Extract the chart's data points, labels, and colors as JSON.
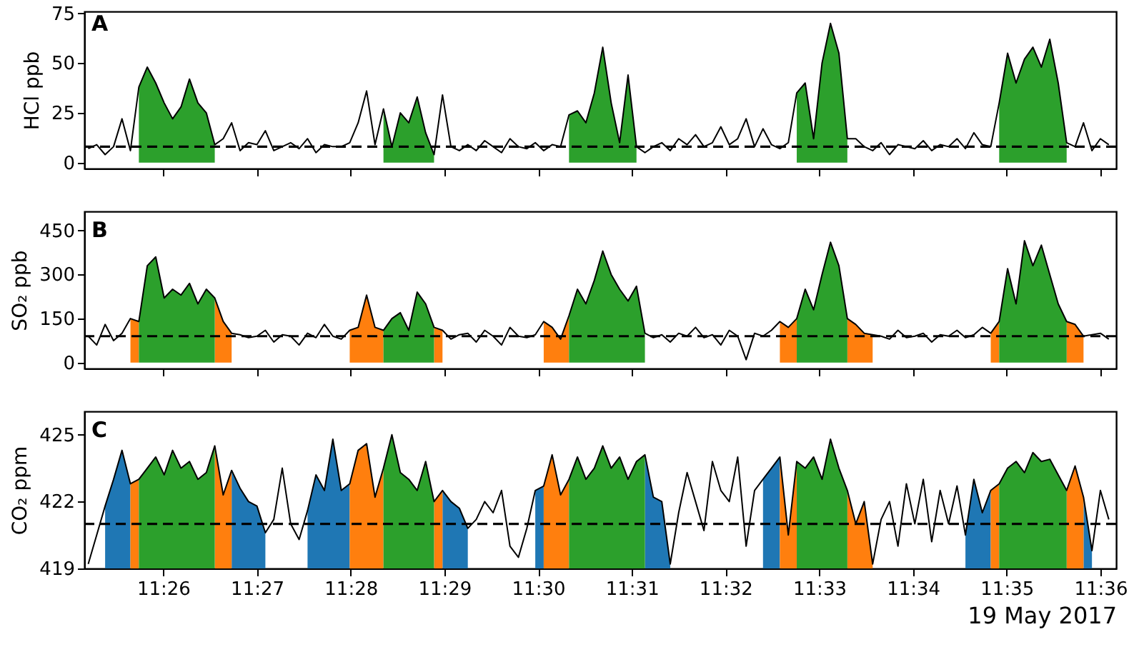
{
  "chart_data": [
    {
      "type": "line",
      "title": "A",
      "ylabel": "HCl ppb",
      "tick_labels": "y",
      "xlim": [
        11.4193,
        11.6028
      ],
      "ylim": [
        -3,
        76
      ],
      "yticks": [
        0,
        25,
        50,
        75
      ],
      "xticks": [
        11.43333,
        11.45,
        11.46667,
        11.48333,
        11.5,
        11.51667,
        11.53333,
        11.55,
        11.56667,
        11.58333,
        11.6
      ],
      "ref_lines": [
        {
          "axis": "y",
          "value": 8,
          "color": "#000000",
          "line_style": "dashed"
        }
      ],
      "x": [
        11.42,
        11.4215,
        11.423,
        11.4245,
        11.426,
        11.4275,
        11.429,
        11.4305,
        11.432,
        11.4335,
        11.435,
        11.4365,
        11.438,
        11.4395,
        11.441,
        11.4425,
        11.444,
        11.4455,
        11.447,
        11.4485,
        11.45,
        11.4515,
        11.453,
        11.4545,
        11.456,
        11.4575,
        11.459,
        11.4605,
        11.462,
        11.4635,
        11.465,
        11.4665,
        11.468,
        11.4695,
        11.471,
        11.4725,
        11.474,
        11.4755,
        11.477,
        11.4785,
        11.48,
        11.4815,
        11.483,
        11.4845,
        11.486,
        11.4875,
        11.489,
        11.4905,
        11.492,
        11.4935,
        11.495,
        11.4965,
        11.498,
        11.4995,
        11.501,
        11.5025,
        11.504,
        11.5055,
        11.507,
        11.5085,
        11.51,
        11.5115,
        11.513,
        11.5145,
        11.516,
        11.5175,
        11.519,
        11.5205,
        11.522,
        11.5235,
        11.525,
        11.5265,
        11.528,
        11.5295,
        11.531,
        11.5325,
        11.534,
        11.5355,
        11.537,
        11.5385,
        11.54,
        11.5415,
        11.543,
        11.5445,
        11.546,
        11.5475,
        11.549,
        11.5505,
        11.552,
        11.5535,
        11.555,
        11.5565,
        11.558,
        11.5595,
        11.561,
        11.5625,
        11.564,
        11.5655,
        11.567,
        11.5685,
        11.57,
        11.5715,
        11.573,
        11.5745,
        11.576,
        11.5775,
        11.579,
        11.5805,
        11.582,
        11.5835,
        11.585,
        11.5865,
        11.588,
        11.5895,
        11.591,
        11.5925,
        11.594,
        11.5955,
        11.597,
        11.5985,
        11.6,
        11.6015
      ],
      "series": [
        {
          "type": "area",
          "color": "#2ca02c",
          "x": [
            11.429,
            11.4305,
            11.432,
            11.4335,
            11.435,
            11.4365,
            11.438,
            11.4395,
            11.441,
            11.4425,
            11.444,
            11.4725,
            11.474,
            11.4755,
            11.477,
            11.4785,
            11.48,
            11.4815,
            11.483,
            11.5055,
            11.507,
            11.5085,
            11.51,
            11.5115,
            11.513,
            11.5145,
            11.516,
            11.5175,
            11.519,
            11.546,
            11.5475,
            11.549,
            11.5505,
            11.552,
            11.5535,
            11.555,
            11.5565,
            11.582,
            11.5835,
            11.585,
            11.5865,
            11.588,
            11.5895,
            11.591,
            11.5925,
            11.594
          ],
          "values": [
            38,
            48,
            40,
            30,
            22,
            28,
            42,
            30,
            25,
            9,
            null,
            27,
            8,
            25,
            20,
            33,
            15,
            4,
            null,
            24,
            26,
            20,
            35,
            58,
            30,
            10,
            44,
            8,
            null,
            35,
            40,
            12,
            50,
            70,
            55,
            12,
            null,
            30,
            55,
            40,
            52,
            58,
            48,
            62,
            40,
            10
          ]
        },
        {
          "type": "line",
          "color": "#000000",
          "values": [
            7,
            9,
            4,
            8,
            22,
            6,
            38,
            48,
            40,
            30,
            22,
            28,
            42,
            30,
            25,
            9,
            12,
            20,
            6,
            10,
            9,
            16,
            6,
            8,
            10,
            7,
            12,
            5,
            9,
            8,
            8,
            10,
            20,
            36,
            9,
            27,
            8,
            25,
            20,
            33,
            15,
            4,
            34,
            8,
            6,
            9,
            6,
            11,
            8,
            5,
            12,
            8,
            7,
            10,
            6,
            9,
            8,
            24,
            26,
            20,
            35,
            58,
            30,
            10,
            44,
            8,
            5,
            8,
            10,
            6,
            12,
            9,
            14,
            8,
            10,
            18,
            9,
            12,
            22,
            8,
            17,
            9,
            7,
            10,
            35,
            40,
            12,
            50,
            70,
            55,
            12,
            12,
            8,
            6,
            10,
            4,
            9,
            8,
            7,
            11,
            6,
            9,
            8,
            12,
            7,
            15,
            9,
            8,
            30,
            55,
            40,
            52,
            58,
            48,
            62,
            40,
            10,
            8,
            20,
            6,
            12,
            9
          ]
        }
      ]
    },
    {
      "type": "line",
      "title": "B",
      "ylabel": "SO₂ ppb",
      "tick_labels": "y",
      "xlim": [
        11.4193,
        11.6028
      ],
      "ylim": [
        -20,
        515
      ],
      "yticks": [
        0,
        150,
        300,
        450
      ],
      "xticks": [
        11.43333,
        11.45,
        11.46667,
        11.48333,
        11.5,
        11.51667,
        11.53333,
        11.55,
        11.56667,
        11.58333,
        11.6
      ],
      "ref_lines": [
        {
          "axis": "y",
          "value": 90,
          "color": "#000000",
          "line_style": "dashed"
        }
      ],
      "x": [
        11.42,
        11.4215,
        11.423,
        11.4245,
        11.426,
        11.4275,
        11.429,
        11.4305,
        11.432,
        11.4335,
        11.435,
        11.4365,
        11.438,
        11.4395,
        11.441,
        11.4425,
        11.444,
        11.4455,
        11.447,
        11.4485,
        11.45,
        11.4515,
        11.453,
        11.4545,
        11.456,
        11.4575,
        11.459,
        11.4605,
        11.462,
        11.4635,
        11.465,
        11.4665,
        11.468,
        11.4695,
        11.471,
        11.4725,
        11.474,
        11.4755,
        11.477,
        11.4785,
        11.48,
        11.4815,
        11.483,
        11.4845,
        11.486,
        11.4875,
        11.489,
        11.4905,
        11.492,
        11.4935,
        11.495,
        11.4965,
        11.498,
        11.4995,
        11.501,
        11.5025,
        11.504,
        11.5055,
        11.507,
        11.5085,
        11.51,
        11.5115,
        11.513,
        11.5145,
        11.516,
        11.5175,
        11.519,
        11.5205,
        11.522,
        11.5235,
        11.525,
        11.5265,
        11.528,
        11.5295,
        11.531,
        11.5325,
        11.534,
        11.5355,
        11.537,
        11.5385,
        11.54,
        11.5415,
        11.543,
        11.5445,
        11.546,
        11.5475,
        11.549,
        11.5505,
        11.552,
        11.5535,
        11.555,
        11.5565,
        11.558,
        11.5595,
        11.561,
        11.5625,
        11.564,
        11.5655,
        11.567,
        11.5685,
        11.57,
        11.5715,
        11.573,
        11.5745,
        11.576,
        11.5775,
        11.579,
        11.5805,
        11.582,
        11.5835,
        11.585,
        11.5865,
        11.588,
        11.5895,
        11.591,
        11.5925,
        11.594,
        11.5955,
        11.597,
        11.5985,
        11.6,
        11.6015
      ],
      "series": [
        {
          "type": "area",
          "color": "#ff7f0e",
          "x": [
            11.4275,
            11.429,
            11.4305,
            11.4425,
            11.444,
            11.4455,
            11.447,
            11.4665,
            11.468,
            11.4695,
            11.471,
            11.4725,
            11.474,
            11.4815,
            11.483,
            11.4845,
            11.501,
            11.5025,
            11.504,
            11.5055,
            11.507,
            11.543,
            11.5445,
            11.546,
            11.5475,
            11.555,
            11.5565,
            11.558,
            11.5595,
            11.561,
            11.5805,
            11.582,
            11.5835,
            11.594,
            11.5955,
            11.597
          ],
          "values": [
            150,
            140,
            null,
            220,
            140,
            100,
            null,
            110,
            120,
            230,
            120,
            110,
            null,
            120,
            110,
            null,
            140,
            120,
            80,
            160,
            null,
            140,
            120,
            150,
            null,
            150,
            130,
            100,
            95,
            null,
            100,
            140,
            null,
            140,
            130,
            90
          ]
        },
        {
          "type": "area",
          "color": "#2ca02c",
          "x": [
            11.429,
            11.4305,
            11.432,
            11.4335,
            11.435,
            11.4365,
            11.438,
            11.4395,
            11.441,
            11.4425,
            11.444,
            11.4725,
            11.474,
            11.4755,
            11.477,
            11.4785,
            11.48,
            11.4815,
            11.483,
            11.5055,
            11.507,
            11.5085,
            11.51,
            11.5115,
            11.513,
            11.5145,
            11.516,
            11.5175,
            11.519,
            11.5205,
            11.546,
            11.5475,
            11.549,
            11.5505,
            11.552,
            11.5535,
            11.555,
            11.5565,
            11.582,
            11.5835,
            11.585,
            11.5865,
            11.588,
            11.5895,
            11.591,
            11.5925,
            11.594
          ],
          "values": [
            140,
            330,
            360,
            220,
            250,
            230,
            270,
            200,
            250,
            220,
            null,
            110,
            150,
            170,
            110,
            240,
            200,
            120,
            null,
            160,
            250,
            200,
            280,
            380,
            300,
            250,
            210,
            260,
            100,
            null,
            150,
            250,
            180,
            300,
            410,
            330,
            150,
            null,
            140,
            320,
            200,
            415,
            330,
            400,
            300,
            200,
            140
          ]
        },
        {
          "type": "line",
          "color": "#000000",
          "values": [
            90,
            60,
            130,
            75,
            100,
            150,
            140,
            330,
            360,
            220,
            250,
            230,
            270,
            200,
            250,
            220,
            140,
            100,
            95,
            85,
            90,
            110,
            70,
            95,
            90,
            60,
            100,
            85,
            130,
            90,
            80,
            110,
            120,
            230,
            120,
            110,
            150,
            170,
            110,
            240,
            200,
            120,
            110,
            80,
            95,
            100,
            70,
            110,
            90,
            60,
            120,
            90,
            85,
            95,
            140,
            120,
            80,
            160,
            250,
            200,
            280,
            380,
            300,
            250,
            210,
            260,
            100,
            85,
            95,
            70,
            100,
            90,
            120,
            85,
            95,
            60,
            110,
            90,
            10,
            100,
            90,
            110,
            140,
            120,
            150,
            250,
            180,
            300,
            410,
            330,
            150,
            130,
            100,
            95,
            90,
            80,
            110,
            85,
            90,
            100,
            70,
            95,
            90,
            110,
            85,
            95,
            120,
            100,
            140,
            320,
            200,
            415,
            330,
            400,
            300,
            200,
            140,
            130,
            90,
            95,
            100,
            80
          ]
        }
      ]
    },
    {
      "type": "line",
      "title": "C",
      "ylabel": "CO₂ ppm",
      "xlabel": "19 May 2017",
      "xlim": [
        11.4193,
        11.6028
      ],
      "ylim": [
        419,
        426.05
      ],
      "yticks": [
        419,
        422,
        425
      ],
      "xticks": [
        {
          "value": 11.43333,
          "label": "11:26"
        },
        {
          "value": 11.45,
          "label": "11:27"
        },
        {
          "value": 11.46667,
          "label": "11:28"
        },
        {
          "value": 11.48333,
          "label": "11:29"
        },
        {
          "value": 11.5,
          "label": "11:30"
        },
        {
          "value": 11.51667,
          "label": "11:31"
        },
        {
          "value": 11.53333,
          "label": "11:32"
        },
        {
          "value": 11.55,
          "label": "11:33"
        },
        {
          "value": 11.56667,
          "label": "11:34"
        },
        {
          "value": 11.58333,
          "label": "11:35"
        },
        {
          "value": 11.6,
          "label": "11:36"
        }
      ],
      "ref_lines": [
        {
          "axis": "y",
          "value": 421,
          "color": "#000000",
          "line_style": "dashed"
        }
      ],
      "x": [
        11.42,
        11.4215,
        11.423,
        11.4245,
        11.426,
        11.4275,
        11.429,
        11.4305,
        11.432,
        11.4335,
        11.435,
        11.4365,
        11.438,
        11.4395,
        11.441,
        11.4425,
        11.444,
        11.4455,
        11.447,
        11.4485,
        11.45,
        11.4515,
        11.453,
        11.4545,
        11.456,
        11.4575,
        11.459,
        11.4605,
        11.462,
        11.4635,
        11.465,
        11.4665,
        11.468,
        11.4695,
        11.471,
        11.4725,
        11.474,
        11.4755,
        11.477,
        11.4785,
        11.48,
        11.4815,
        11.483,
        11.4845,
        11.486,
        11.4875,
        11.489,
        11.4905,
        11.492,
        11.4935,
        11.495,
        11.4965,
        11.498,
        11.4995,
        11.501,
        11.5025,
        11.504,
        11.5055,
        11.507,
        11.5085,
        11.51,
        11.5115,
        11.513,
        11.5145,
        11.516,
        11.5175,
        11.519,
        11.5205,
        11.522,
        11.5235,
        11.525,
        11.5265,
        11.528,
        11.5295,
        11.531,
        11.5325,
        11.534,
        11.5355,
        11.537,
        11.5385,
        11.54,
        11.5415,
        11.543,
        11.5445,
        11.546,
        11.5475,
        11.549,
        11.5505,
        11.552,
        11.5535,
        11.555,
        11.5565,
        11.558,
        11.5595,
        11.561,
        11.5625,
        11.564,
        11.5655,
        11.567,
        11.5685,
        11.57,
        11.5715,
        11.573,
        11.5745,
        11.576,
        11.5775,
        11.579,
        11.5805,
        11.582,
        11.5835,
        11.585,
        11.5865,
        11.588,
        11.5895,
        11.591,
        11.5925,
        11.594,
        11.5955,
        11.597,
        11.5985,
        11.6,
        11.6015
      ],
      "series": [
        {
          "type": "area",
          "color": "#1f77b4",
          "x": [
            11.423,
            11.4245,
            11.426,
            11.4275,
            11.429,
            11.4455,
            11.447,
            11.4485,
            11.45,
            11.4515,
            11.453,
            11.459,
            11.4605,
            11.462,
            11.4635,
            11.465,
            11.4665,
            11.468,
            11.483,
            11.4845,
            11.486,
            11.4875,
            11.489,
            11.4995,
            11.501,
            11.5025,
            11.519,
            11.5205,
            11.522,
            11.5235,
            11.525,
            11.54,
            11.5415,
            11.543,
            11.5445,
            11.576,
            11.5775,
            11.579,
            11.5805,
            11.582,
            11.597,
            11.5985
          ],
          "values": [
            421.8,
            423.0,
            424.3,
            422.8,
            null,
            423.4,
            422.6,
            422.0,
            421.8,
            420.6,
            null,
            421.6,
            423.2,
            422.5,
            424.8,
            422.5,
            422.8,
            null,
            422.5,
            422.0,
            421.7,
            420.8,
            null,
            422.5,
            422.7,
            null,
            424.1,
            422.2,
            422.0,
            419.2,
            null,
            423.0,
            423.5,
            424.0,
            null,
            420.5,
            423.0,
            421.5,
            422.5,
            null,
            422.2,
            419.8
          ]
        },
        {
          "type": "area",
          "color": "#ff7f0e",
          "x": [
            11.4275,
            11.429,
            11.4305,
            11.4425,
            11.444,
            11.4455,
            11.447,
            11.4665,
            11.468,
            11.4695,
            11.471,
            11.4725,
            11.474,
            11.4815,
            11.483,
            11.4845,
            11.501,
            11.5025,
            11.504,
            11.5055,
            11.507,
            11.543,
            11.5445,
            11.546,
            11.5475,
            11.555,
            11.5565,
            11.558,
            11.5595,
            11.561,
            11.5805,
            11.582,
            11.5835,
            11.594,
            11.5955,
            11.597
          ],
          "values": [
            422.8,
            423.0,
            null,
            424.5,
            422.3,
            423.4,
            null,
            422.8,
            424.3,
            424.6,
            422.2,
            423.5,
            null,
            422.0,
            422.5,
            null,
            422.7,
            424.1,
            422.3,
            423.0,
            null,
            424.0,
            420.5,
            423.8,
            null,
            422.5,
            421.0,
            422.0,
            419.2,
            null,
            422.5,
            422.8,
            null,
            422.5,
            423.6,
            422.2
          ]
        },
        {
          "type": "area",
          "color": "#2ca02c",
          "x": [
            11.429,
            11.4305,
            11.432,
            11.4335,
            11.435,
            11.4365,
            11.438,
            11.4395,
            11.441,
            11.4425,
            11.444,
            11.4725,
            11.474,
            11.4755,
            11.477,
            11.4785,
            11.48,
            11.4815,
            11.483,
            11.5055,
            11.507,
            11.5085,
            11.51,
            11.5115,
            11.513,
            11.5145,
            11.516,
            11.5175,
            11.519,
            11.5205,
            11.546,
            11.5475,
            11.549,
            11.5505,
            11.552,
            11.5535,
            11.555,
            11.5565,
            11.582,
            11.5835,
            11.585,
            11.5865,
            11.588,
            11.5895,
            11.591,
            11.5925,
            11.594
          ],
          "values": [
            423.0,
            423.5,
            424.0,
            423.2,
            424.3,
            423.5,
            423.8,
            423.0,
            423.3,
            424.5,
            null,
            423.5,
            425.0,
            423.3,
            423.0,
            422.5,
            423.8,
            422.0,
            null,
            423.0,
            424.0,
            423.0,
            423.5,
            424.5,
            423.5,
            424.0,
            423.0,
            423.8,
            424.1,
            null,
            423.8,
            423.5,
            424.0,
            423.0,
            424.8,
            423.5,
            422.5,
            null,
            422.8,
            423.5,
            423.8,
            423.3,
            424.2,
            423.8,
            423.9,
            423.2,
            422.5
          ]
        },
        {
          "type": "line",
          "color": "#000000",
          "values": [
            419.2,
            420.5,
            421.8,
            423.0,
            424.3,
            422.8,
            423.0,
            423.5,
            424.0,
            423.2,
            424.3,
            423.5,
            423.8,
            423.0,
            423.3,
            424.5,
            422.3,
            423.4,
            422.6,
            422.0,
            421.8,
            420.6,
            421.2,
            423.5,
            421.0,
            420.3,
            421.6,
            423.2,
            422.5,
            424.8,
            422.5,
            422.8,
            424.3,
            424.6,
            422.2,
            423.5,
            425.0,
            423.3,
            423.0,
            422.5,
            423.8,
            422.0,
            422.5,
            422.0,
            421.7,
            420.8,
            421.2,
            422.0,
            421.5,
            422.5,
            420.0,
            419.5,
            420.8,
            422.5,
            422.7,
            424.1,
            422.3,
            423.0,
            424.0,
            423.0,
            423.5,
            424.5,
            423.5,
            424.0,
            423.0,
            423.8,
            424.1,
            422.2,
            422.0,
            419.2,
            421.5,
            423.3,
            422.0,
            420.7,
            423.8,
            422.5,
            422.0,
            424.0,
            420.0,
            422.5,
            423.0,
            423.5,
            424.0,
            420.5,
            423.8,
            423.5,
            424.0,
            423.0,
            424.8,
            423.5,
            422.5,
            421.0,
            422.0,
            419.2,
            421.2,
            422.0,
            420.0,
            422.8,
            421.0,
            423.0,
            420.2,
            422.5,
            421.0,
            422.7,
            420.5,
            423.0,
            421.5,
            422.5,
            422.8,
            423.5,
            423.8,
            423.3,
            424.2,
            423.8,
            423.9,
            423.2,
            422.5,
            423.6,
            422.2,
            419.8,
            422.5,
            421.2
          ]
        }
      ]
    }
  ]
}
